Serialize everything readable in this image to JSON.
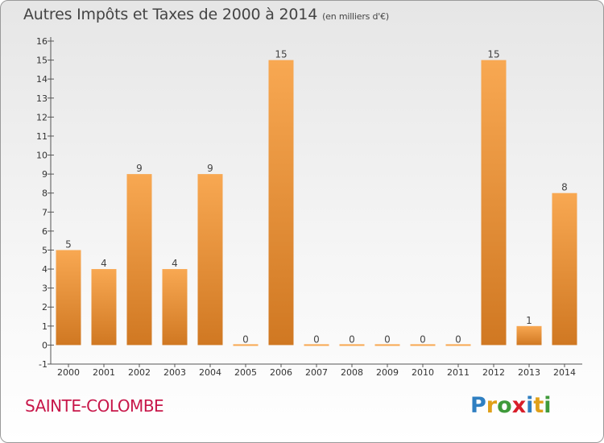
{
  "header": {
    "title": "Autres Impôts et Taxes de 2000 à 2014",
    "subtitle": "(en milliers d'€)"
  },
  "footer": {
    "commune": "SAINTE-COLOMBE",
    "brand": "Proxiti",
    "brand_letters": [
      {
        "ch": "P",
        "color": "#2f7fc1"
      },
      {
        "ch": "r",
        "color": "#e0a019"
      },
      {
        "ch": "o",
        "color": "#3f9a3a"
      },
      {
        "ch": "x",
        "color": "#d81e2a"
      },
      {
        "ch": "i",
        "color": "#2f7fc1"
      },
      {
        "ch": "t",
        "color": "#e0a019"
      },
      {
        "ch": "i",
        "color": "#3f9a3a"
      }
    ]
  },
  "colors": {
    "bar_light": "#f8a852",
    "bar_dark": "#d07822",
    "axis": "#555555",
    "grid": "#bbbbbb"
  },
  "chart_data": {
    "type": "bar",
    "categories": [
      "2000",
      "2001",
      "2002",
      "2003",
      "2004",
      "2005",
      "2006",
      "2007",
      "2008",
      "2009",
      "2010",
      "2011",
      "2012",
      "2013",
      "2014"
    ],
    "values": [
      5,
      4,
      9,
      4,
      9,
      0,
      15,
      0,
      0,
      0,
      0,
      0,
      15,
      1,
      8
    ],
    "data_labels": [
      "5",
      "4",
      "9",
      "4",
      "9",
      "0",
      "15",
      "0",
      "0",
      "0",
      "0",
      "0",
      "15",
      "1",
      "8"
    ],
    "ylim": [
      -1,
      16
    ],
    "yticks": [
      -1,
      0,
      1,
      2,
      3,
      4,
      5,
      6,
      7,
      8,
      9,
      10,
      11,
      12,
      13,
      14,
      15,
      16
    ],
    "ytick_labels": [
      "-1",
      "0",
      "1",
      "2",
      "3",
      "4",
      "5",
      "6",
      "7",
      "8",
      "9",
      "10",
      "11",
      "12",
      "13",
      "14",
      "15",
      "16"
    ],
    "title": "Autres Impôts et Taxes de 2000 à 2014",
    "xlabel": "",
    "ylabel": "",
    "grid": false,
    "legend": "none"
  }
}
